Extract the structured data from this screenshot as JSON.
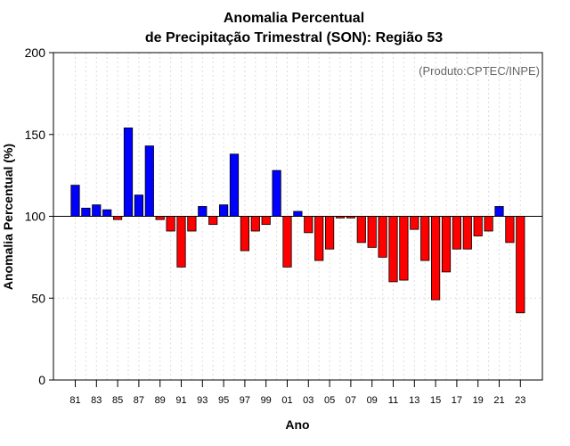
{
  "chart_data": {
    "type": "bar",
    "title_line1": "Anomalia Percentual",
    "title_line2": "de Precipitação Trimestral (SON): Região 53",
    "xlabel": "Ano",
    "ylabel": "Anomalia Percentual (%)",
    "annotation": "(Produto:CPTEC/INPE)",
    "ylim": [
      0,
      200
    ],
    "yticks": [
      0,
      50,
      100,
      150,
      200
    ],
    "baseline": 100,
    "grid": true,
    "colors": {
      "above": "#0000ff",
      "below": "#ff0000"
    },
    "categories": [
      "81",
      "82",
      "83",
      "84",
      "85",
      "86",
      "87",
      "88",
      "89",
      "90",
      "91",
      "92",
      "93",
      "94",
      "95",
      "96",
      "97",
      "98",
      "99",
      "00",
      "01",
      "02",
      "03",
      "04",
      "05",
      "06",
      "07",
      "08",
      "09",
      "10",
      "11",
      "12",
      "13",
      "14",
      "15",
      "16",
      "17",
      "18",
      "19",
      "20",
      "21",
      "22",
      "23"
    ],
    "xtick_labels": [
      "81",
      "83",
      "85",
      "87",
      "89",
      "91",
      "93",
      "95",
      "97",
      "99",
      "01",
      "03",
      "05",
      "07",
      "09",
      "11",
      "13",
      "15",
      "17",
      "19",
      "21",
      "23"
    ],
    "values": [
      119,
      105,
      107,
      104,
      98,
      154,
      113,
      143,
      98,
      91,
      69,
      91,
      106,
      95,
      107,
      138,
      79,
      91,
      95,
      128,
      69,
      103,
      90,
      73,
      80,
      99,
      99,
      84,
      81,
      75,
      60,
      61,
      92,
      73,
      49,
      66,
      80,
      80,
      88,
      91,
      106,
      84,
      41
    ]
  }
}
